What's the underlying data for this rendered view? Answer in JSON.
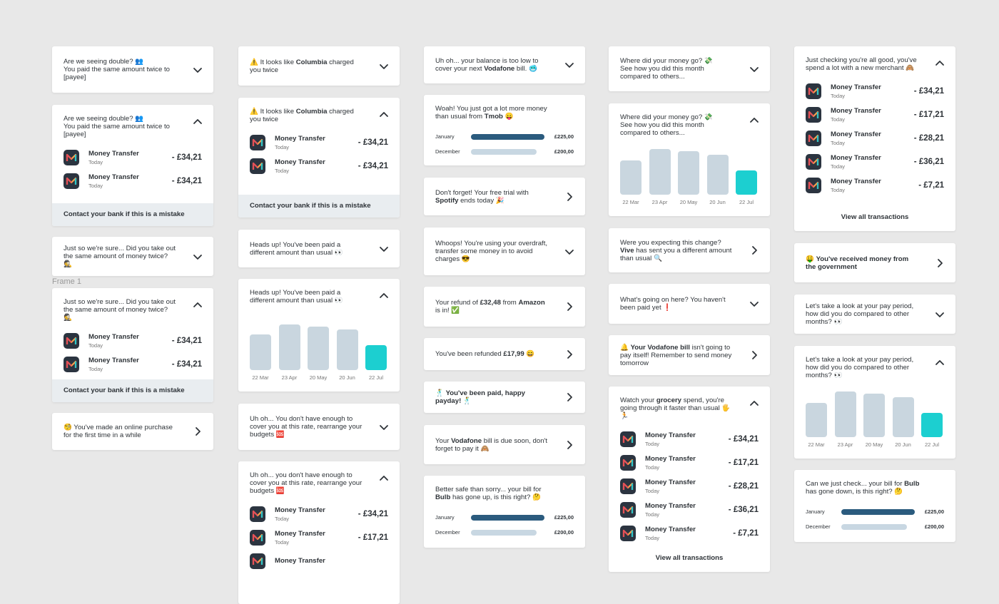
{
  "frame_label": "Frame 1",
  "colors": {
    "bar": "#c9d6df",
    "highlight": "#1ccfd0",
    "progress": [
      "#2b5b7e",
      "#c8d7e2"
    ]
  },
  "columns": [
    [
      {
        "message": [
          {
            "text": "Are we seeing double? 👥\nYou paid the same amount twice to [payee]"
          }
        ],
        "chevron": "down"
      },
      {
        "message": [
          {
            "text": "Are we seeing double? 👥\nYou paid the same amount twice to [payee]"
          }
        ],
        "chevron": "up",
        "transactions": [
          {
            "title": "Money Transfer",
            "subtitle": "Today",
            "amount": "- £34,21"
          },
          {
            "title": "Money Transfer",
            "subtitle": "Today",
            "amount": "- £34,21"
          }
        ],
        "footer": "Contact your bank if this is a mistake"
      },
      {
        "message": [
          {
            "text": "Just so we're sure... Did you take out the same amount of money twice? 🕵"
          }
        ],
        "chevron": "down"
      },
      {
        "message": [
          {
            "text": "Just so we're sure... Did you take out the same amount of money twice? 🕵"
          }
        ],
        "chevron": "up",
        "transactions": [
          {
            "title": "Money Transfer",
            "subtitle": "Today",
            "amount": "- £34,21"
          },
          {
            "title": "Money Transfer",
            "subtitle": "Today",
            "amount": "- £34,21"
          }
        ],
        "footer": "Contact your bank if this is a mistake"
      },
      {
        "message": [
          {
            "text": "🧐 You've made an online purchase for the first time in a while"
          }
        ],
        "chevron": "right"
      }
    ],
    [
      {
        "message": [
          {
            "text": "⚠️ It looks like "
          },
          {
            "text": "Columbia",
            "bold": true
          },
          {
            "text": " charged you twice"
          }
        ],
        "chevron": "down"
      },
      {
        "message": [
          {
            "text": "⚠️ It looks like "
          },
          {
            "text": "Columbia",
            "bold": true
          },
          {
            "text": " charged you twice"
          }
        ],
        "chevron": "up",
        "transactions": [
          {
            "title": "Money Transfer",
            "subtitle": "Today",
            "amount": "- £34,21"
          },
          {
            "title": "Money Transfer",
            "subtitle": "Today",
            "amount": "- £34,21"
          }
        ],
        "footer": "Contact your bank if this is a mistake"
      },
      {
        "message": [
          {
            "text": "Heads up! You've been paid a different amount than usual 👀"
          }
        ],
        "chevron": "down"
      },
      {
        "message": [
          {
            "text": "Heads up! You've been paid a different amount than usual 👀"
          }
        ],
        "chevron": "up",
        "bars": {
          "labels": [
            "22 Mar",
            "23 Apr",
            "20 May",
            "20 Jun",
            "22 Jul"
          ],
          "values": [
            50,
            64,
            61,
            57,
            35
          ],
          "highlight": 4
        }
      },
      {
        "message": [
          {
            "text": "Uh oh... You don't have enough to cover you at this rate, rearrange your budgets 🆘"
          }
        ],
        "chevron": "down"
      },
      {
        "message": [
          {
            "text": "Uh oh... you don't have enough to cover you at this rate, rearrange your budgets 🆘"
          }
        ],
        "chevron": "up",
        "transactions": [
          {
            "title": "Money Transfer",
            "subtitle": "Today",
            "amount": "- £34,21"
          },
          {
            "title": "Money Transfer",
            "subtitle": "Today",
            "amount": "- £17,21"
          },
          {
            "title": "Money Transfer"
          }
        ]
      }
    ],
    [
      {
        "message": [
          {
            "text": "Uh oh... your balance is too low to cover your next "
          },
          {
            "text": "Vodafone",
            "bold": true
          },
          {
            "text": " bill. 🥶"
          }
        ],
        "chevron": "down"
      },
      {
        "message": [
          {
            "text": "Woah! You just got a lot more money than usual from "
          },
          {
            "text": "Tmob",
            "bold": true
          },
          {
            "text": " 😛"
          }
        ],
        "progress": [
          {
            "label": "January",
            "value": 225,
            "amount": "£225,00"
          },
          {
            "label": "December",
            "value": 200,
            "amount": "£200,00"
          }
        ]
      },
      {
        "message": [
          {
            "text": "Don't forget! Your free trial with "
          },
          {
            "text": "Spotify",
            "bold": true
          },
          {
            "text": " ends today 🎉"
          }
        ],
        "chevron": "right"
      },
      {
        "message": [
          {
            "text": "Whoops! You're using your overdraft, transfer some money in to avoid charges 😎"
          }
        ],
        "chevron": "down"
      },
      {
        "message": [
          {
            "text": "Your refund of "
          },
          {
            "text": "£32,48",
            "bold": true
          },
          {
            "text": " from "
          },
          {
            "text": "Amazon",
            "bold": true
          },
          {
            "text": " is in! ✅"
          }
        ],
        "chevron": "right"
      },
      {
        "message": [
          {
            "text": "You've been refunded "
          },
          {
            "text": "£17,99",
            "bold": true
          },
          {
            "text": " 😄"
          }
        ],
        "chevron": "right"
      },
      {
        "message": [
          {
            "text": "🕺 "
          },
          {
            "text": "You've been paid, happy payday!",
            "bold": true
          },
          {
            "text": " 🕺"
          }
        ],
        "chevron": "right"
      },
      {
        "message": [
          {
            "text": "Your "
          },
          {
            "text": "Vodafone",
            "bold": true
          },
          {
            "text": " bill is due soon, don't forget to pay it 🙈"
          }
        ],
        "chevron": "right"
      },
      {
        "message": [
          {
            "text": "Better safe than sorry... your bill for "
          },
          {
            "text": "Bulb",
            "bold": true
          },
          {
            "text": " has gone up, is this right? 🤔"
          }
        ],
        "progress": [
          {
            "label": "January",
            "value": 225,
            "amount": "£225,00"
          },
          {
            "label": "December",
            "value": 200,
            "amount": "£200,00"
          }
        ]
      }
    ],
    [
      {
        "message": [
          {
            "text": "Where did your money go? 💸\nSee how you did this month compared to others..."
          }
        ],
        "chevron": "down"
      },
      {
        "message": [
          {
            "text": "Where did your money go? 💸\nSee how you did this month compared to others..."
          }
        ],
        "chevron": "up",
        "bars": {
          "labels": [
            "22 Mar",
            "23 Apr",
            "20 May",
            "20 Jun",
            "22 Jul"
          ],
          "values": [
            48,
            64,
            61,
            56,
            34
          ],
          "highlight": 4
        }
      },
      {
        "message": [
          {
            "text": "Were you expecting this change? "
          },
          {
            "text": "Vive",
            "bold": true
          },
          {
            "text": " has sent you a different amount than usual 🔍"
          }
        ],
        "chevron": "right"
      },
      {
        "message": [
          {
            "text": "What's going on here? You haven't been paid yet ❗"
          }
        ],
        "chevron": "down"
      },
      {
        "message": [
          {
            "text": "🔔 "
          },
          {
            "text": "Your Vodafone bill",
            "bold": true
          },
          {
            "text": " isn't going to pay itself! Remember to send money tomorrow"
          }
        ],
        "chevron": "right"
      },
      {
        "message": [
          {
            "text": "Watch your "
          },
          {
            "text": "grocery",
            "bold": true
          },
          {
            "text": " spend, you're going through it faster than usual 🖐🏃"
          }
        ],
        "chevron": "up",
        "transactions": [
          {
            "title": "Money Transfer",
            "subtitle": "Today",
            "amount": "- £34,21"
          },
          {
            "title": "Money Transfer",
            "subtitle": "Today",
            "amount": "- £17,21"
          },
          {
            "title": "Money Transfer",
            "subtitle": "Today",
            "amount": "- £28,21"
          },
          {
            "title": "Money Transfer",
            "subtitle": "Today",
            "amount": "- £36,21"
          },
          {
            "title": "Money Transfer",
            "subtitle": "Today",
            "amount": "- £7,21"
          }
        ],
        "link": "View all transactions"
      }
    ],
    [
      {
        "message": [
          {
            "text": "Just checking you're all good, you've spend a lot with a new merchant 🙈"
          }
        ],
        "chevron": "up",
        "transactions": [
          {
            "title": "Money Transfer",
            "subtitle": "Today",
            "amount": "- £34,21"
          },
          {
            "title": "Money Transfer",
            "subtitle": "Today",
            "amount": "- £17,21"
          },
          {
            "title": "Money Transfer",
            "subtitle": "Today",
            "amount": "- £28,21"
          },
          {
            "title": "Money Transfer",
            "subtitle": "Today",
            "amount": "- £36,21"
          },
          {
            "title": "Money Transfer",
            "subtitle": "Today",
            "amount": "- £7,21"
          }
        ],
        "link": "View all transactions"
      },
      {
        "message": [
          {
            "text": "🤑 "
          },
          {
            "text": "You've received money from the government",
            "bold": true
          }
        ],
        "chevron": "right"
      },
      {
        "message": [
          {
            "text": "Let's take a look at your pay period, how did you do compared to other months? 👀"
          }
        ],
        "chevron": "down"
      },
      {
        "message": [
          {
            "text": "Let's take a look at your pay period, how did you do compared to other months? 👀"
          }
        ],
        "chevron": "up",
        "bars": {
          "labels": [
            "22 Mar",
            "23 Apr",
            "20 May",
            "20 Jun",
            "22 Jul"
          ],
          "values": [
            48,
            64,
            61,
            56,
            34
          ],
          "highlight": 4
        }
      },
      {
        "message": [
          {
            "text": "Can we just check... your bill for "
          },
          {
            "text": "Bulb",
            "bold": true
          },
          {
            "text": " has gone down, is this right? 🤔"
          }
        ],
        "progress": [
          {
            "label": "January",
            "value": 225,
            "amount": "£225,00"
          },
          {
            "label": "December",
            "value": 200,
            "amount": "£200,00"
          }
        ]
      }
    ]
  ]
}
